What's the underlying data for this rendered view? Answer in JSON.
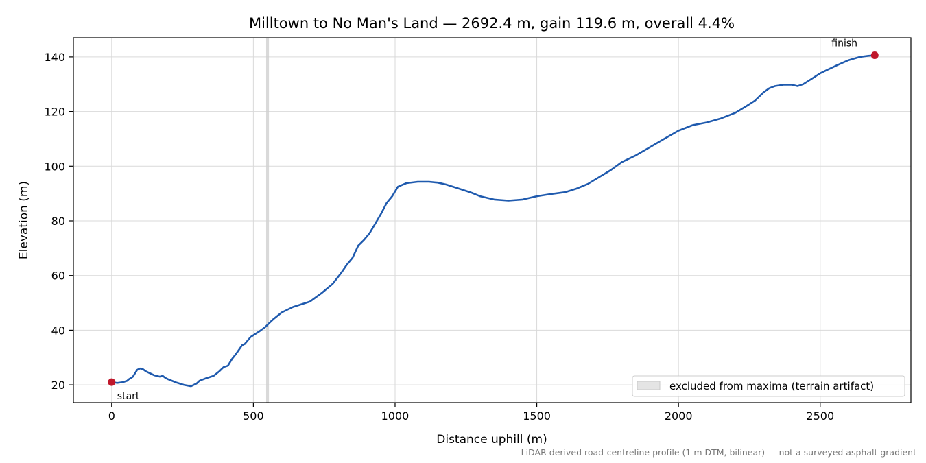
{
  "chart_data": {
    "type": "line",
    "title": "Milltown to No Man's Land — 2692.4 m, gain 119.6 m, overall 4.4%",
    "xlabel": "Distance uphill (m)",
    "ylabel": "Elevation (m)",
    "xlim": [
      -135,
      2820
    ],
    "ylim": [
      13.5,
      147
    ],
    "xticks": [
      0,
      500,
      1000,
      1500,
      2000,
      2500
    ],
    "yticks": [
      20,
      40,
      60,
      80,
      100,
      120,
      140
    ],
    "xtick_labels": [
      "0",
      "500",
      "1000",
      "1500",
      "2000",
      "2500"
    ],
    "ytick_labels": [
      "20",
      "40",
      "60",
      "80",
      "100",
      "120",
      "140"
    ],
    "grid": true,
    "line_color": "#1f5aae",
    "marker_color": "#c0172b",
    "series": [
      {
        "x": [
          0,
          20,
          40,
          55,
          60,
          75,
          90,
          100,
          110,
          120,
          130,
          150,
          170,
          180,
          190,
          200,
          230,
          255,
          270,
          280,
          300,
          310,
          330,
          360,
          380,
          395,
          410,
          425,
          440,
          460,
          470,
          490,
          505,
          520,
          540,
          555,
          570,
          600,
          640,
          700,
          740,
          780,
          810,
          830,
          850,
          870,
          890,
          910,
          930,
          950,
          970,
          990,
          1010,
          1040,
          1080,
          1120,
          1150,
          1180,
          1220,
          1270,
          1300,
          1350,
          1400,
          1450,
          1500,
          1550,
          1600,
          1640,
          1680,
          1720,
          1760,
          1800,
          1850,
          1900,
          1950,
          2000,
          2050,
          2100,
          2150,
          2200,
          2240,
          2270,
          2300,
          2320,
          2340,
          2370,
          2400,
          2420,
          2440,
          2470,
          2500,
          2520,
          2560,
          2600,
          2640,
          2670,
          2692.4
        ],
        "y": [
          21,
          20.7,
          21,
          21.5,
          22,
          23,
          25.5,
          26,
          25.8,
          25,
          24.5,
          23.5,
          23,
          23.3,
          22.5,
          22,
          20.8,
          20,
          19.7,
          19.5,
          20.5,
          21.5,
          22.3,
          23.3,
          25,
          26.5,
          27,
          29.5,
          31.5,
          34.5,
          35,
          37.5,
          38.5,
          39.5,
          41,
          42.5,
          44,
          46.5,
          48.5,
          50.5,
          53.5,
          57,
          61,
          64,
          66.5,
          71,
          73,
          75.5,
          79,
          82.5,
          86.5,
          89,
          92.5,
          93.8,
          94.3,
          94.3,
          94,
          93.3,
          92,
          90.3,
          89,
          87.8,
          87.4,
          87.8,
          89,
          89.8,
          90.5,
          91.8,
          93.5,
          96,
          98.5,
          101.5,
          104,
          107,
          110,
          113,
          115,
          116,
          117.5,
          119.5,
          122,
          124,
          127,
          128.5,
          129.3,
          129.8,
          129.8,
          129.3,
          130,
          132,
          134,
          135,
          137,
          138.8,
          140,
          140.4,
          140.6
        ]
      }
    ],
    "markers": [
      {
        "name": "start",
        "label": "start",
        "x": 0,
        "y": 21
      },
      {
        "name": "finish",
        "label": "finish",
        "x": 2692.4,
        "y": 140.6
      }
    ],
    "excluded_band": {
      "x0": 545,
      "x1": 555
    },
    "legend": {
      "entries": [
        "excluded from maxima (terrain artifact)"
      ],
      "placement": "lower-right"
    },
    "footnote": "LiDAR-derived road-centreline profile (1 m DTM, bilinear) — not a surveyed asphalt gradient"
  }
}
